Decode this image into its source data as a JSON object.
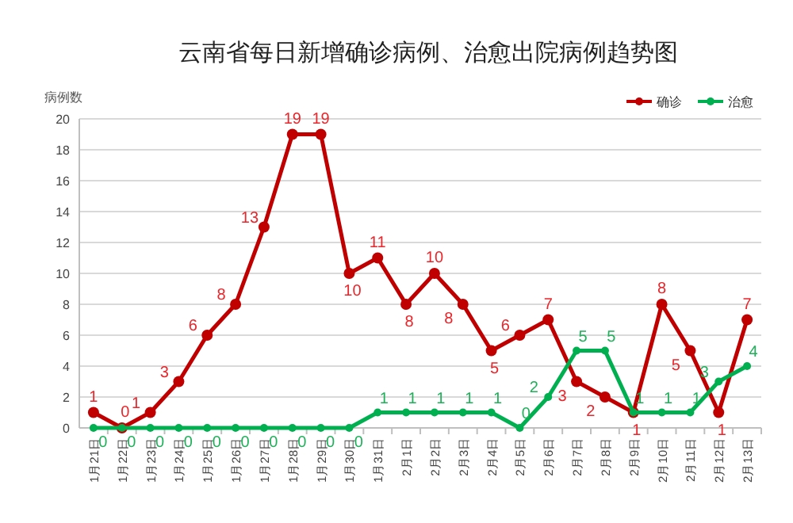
{
  "chart_data": {
    "type": "line",
    "title": "云南省每日新增确诊病例、治愈出院病例趋势图",
    "ylabel": "病例数",
    "categories": [
      "1月21日",
      "1月22日",
      "1月23日",
      "1月24日",
      "1月25日",
      "1月26日",
      "1月27日",
      "1月28日",
      "1月29日",
      "1月30日",
      "1月31日",
      "2月1日",
      "2月2日",
      "2月3日",
      "2月4日",
      "2月5日",
      "2月6日",
      "2月7日",
      "2月8日",
      "2月9日",
      "2月10日",
      "2月11日",
      "2月12日",
      "2月13日"
    ],
    "series": [
      {
        "name": "确诊",
        "color": "#c00000",
        "values": [
          1,
          0,
          1,
          3,
          6,
          8,
          13,
          19,
          19,
          10,
          11,
          8,
          10,
          8,
          5,
          6,
          7,
          3,
          2,
          1,
          8,
          5,
          1,
          7
        ]
      },
      {
        "name": "治愈",
        "color": "#00b050",
        "values": [
          0,
          0,
          0,
          0,
          0,
          0,
          0,
          0,
          0,
          0,
          1,
          1,
          1,
          1,
          1,
          0,
          2,
          5,
          5,
          1,
          1,
          1,
          3,
          4
        ]
      }
    ],
    "ylim": [
      0,
      20
    ],
    "yticks": [
      0,
      2,
      4,
      6,
      8,
      10,
      12,
      14,
      16,
      18,
      20
    ],
    "grid": "y",
    "legend": "top right",
    "marker": "circle",
    "line_style": "solid",
    "data_labels": true
  }
}
